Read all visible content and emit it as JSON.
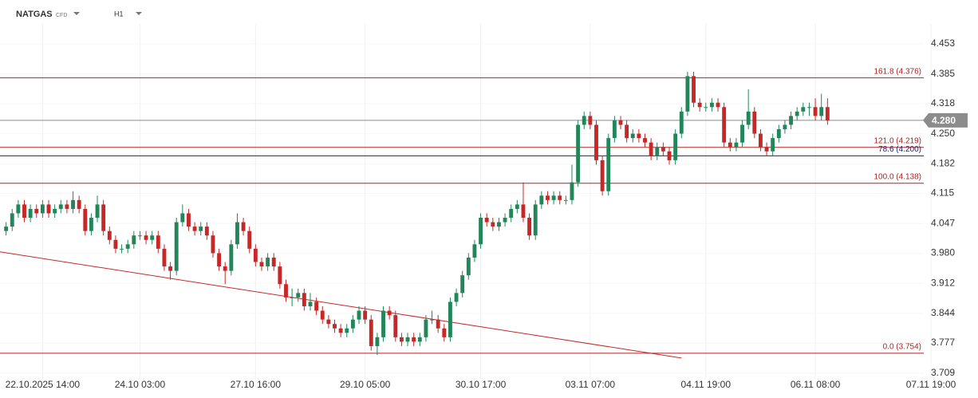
{
  "chart_data": {
    "type": "candlestick",
    "symbol": "NATGAS",
    "instrument": "CFD",
    "timeframe": "H1",
    "up_color": "#22865a",
    "down_color": "#c62828",
    "grid": true,
    "ylim": [
      3.696,
      4.552
    ],
    "yticks": [
      4.453,
      4.385,
      4.318,
      {
        "value": 4.25,
        "label": "4.250"
      },
      4.182,
      4.115,
      4.047,
      {
        "value": 3.98,
        "label": "3.980"
      },
      3.912,
      3.844,
      3.777,
      3.709
    ],
    "xlim": [
      -1,
      152
    ],
    "xticks": [
      {
        "value": 6,
        "label": "22.10.2025 14:00"
      },
      {
        "value": 22,
        "label": "24.10 03:00"
      },
      {
        "value": 41,
        "label": "27.10 16:00"
      },
      {
        "value": 59,
        "label": "29.10 05:00"
      },
      {
        "value": 78,
        "label": "30.10 17:00"
      },
      {
        "value": 96,
        "label": "03.11 07:00"
      },
      {
        "value": 115,
        "label": "04.11 19:00"
      },
      {
        "value": 133,
        "label": "06.11 08:00"
      },
      {
        "value": 152,
        "label": "07.11 19:00"
      }
    ],
    "last_price": {
      "value": 4.28,
      "label": "4.280",
      "color": "#8c8c8c"
    },
    "levels": [
      {
        "label": "161.8 (4.376)",
        "value": 4.376,
        "color": "#b22222"
      },
      {
        "label": "121.0 (4.219)",
        "value": 4.219,
        "color": "#b22222"
      },
      {
        "label": "78.6 (4.200)",
        "value": 4.2,
        "color": "#1a237e"
      },
      {
        "label": "100.0 (4.138)",
        "value": 4.138,
        "color": "#b22222"
      },
      {
        "label": "0.0 (3.754)",
        "value": 3.754,
        "color": "#b22222"
      }
    ],
    "trendline": {
      "x": [
        -1,
        111
      ],
      "y": [
        3.983,
        3.743
      ],
      "color": "#c62828"
    },
    "ohlc": [
      [
        4.03,
        4.05,
        4.02,
        4.04
      ],
      [
        4.04,
        4.08,
        4.03,
        4.07
      ],
      [
        4.07,
        4.1,
        4.06,
        4.09
      ],
      [
        4.09,
        4.1,
        4.05,
        4.06
      ],
      [
        4.06,
        4.09,
        4.05,
        4.08
      ],
      [
        4.08,
        4.09,
        4.06,
        4.07
      ],
      [
        4.07,
        4.1,
        4.06,
        4.09
      ],
      [
        4.09,
        4.1,
        4.06,
        4.07
      ],
      [
        4.07,
        4.09,
        4.06,
        4.08
      ],
      [
        4.08,
        4.1,
        4.07,
        4.09
      ],
      [
        4.09,
        4.1,
        4.07,
        4.08
      ],
      [
        4.08,
        4.12,
        4.07,
        4.1
      ],
      [
        4.1,
        4.11,
        4.07,
        4.08
      ],
      [
        4.08,
        4.09,
        4.02,
        4.03
      ],
      [
        4.03,
        4.07,
        4.02,
        4.06
      ],
      [
        4.06,
        4.11,
        4.05,
        4.09
      ],
      [
        4.09,
        4.1,
        4.02,
        4.03
      ],
      [
        4.03,
        4.04,
        4.0,
        4.01
      ],
      [
        4.01,
        4.02,
        3.98,
        3.99
      ],
      [
        3.99,
        4.0,
        3.98,
        3.99
      ],
      [
        3.99,
        4.01,
        3.98,
        4.0
      ],
      [
        4.0,
        4.03,
        3.99,
        4.02
      ],
      [
        4.02,
        4.03,
        4.01,
        4.02
      ],
      [
        4.02,
        4.03,
        4.0,
        4.01
      ],
      [
        4.01,
        4.03,
        4.0,
        4.02
      ],
      [
        4.02,
        4.03,
        3.98,
        3.99
      ],
      [
        3.99,
        4.0,
        3.94,
        3.95
      ],
      [
        3.95,
        3.96,
        3.92,
        3.94
      ],
      [
        3.94,
        4.06,
        3.93,
        4.05
      ],
      [
        4.05,
        4.09,
        4.04,
        4.07
      ],
      [
        4.07,
        4.08,
        4.03,
        4.04
      ],
      [
        4.04,
        4.05,
        4.02,
        4.03
      ],
      [
        4.03,
        4.05,
        4.02,
        4.04
      ],
      [
        4.04,
        4.05,
        4.01,
        4.02
      ],
      [
        4.02,
        4.03,
        3.97,
        3.98
      ],
      [
        3.98,
        3.99,
        3.94,
        3.95
      ],
      [
        3.95,
        3.96,
        3.91,
        3.94
      ],
      [
        3.94,
        4.01,
        3.93,
        4.0
      ],
      [
        4.0,
        4.07,
        3.99,
        4.05
      ],
      [
        4.05,
        4.06,
        4.02,
        4.03
      ],
      [
        4.03,
        4.04,
        3.98,
        3.99
      ],
      [
        3.99,
        4.0,
        3.95,
        3.96
      ],
      [
        3.96,
        3.97,
        3.94,
        3.95
      ],
      [
        3.95,
        3.98,
        3.94,
        3.97
      ],
      [
        3.97,
        3.98,
        3.94,
        3.95
      ],
      [
        3.95,
        3.96,
        3.9,
        3.91
      ],
      [
        3.91,
        3.92,
        3.87,
        3.88
      ],
      [
        3.88,
        3.9,
        3.86,
        3.88
      ],
      [
        3.88,
        3.9,
        3.87,
        3.89
      ],
      [
        3.89,
        3.9,
        3.85,
        3.86
      ],
      [
        3.86,
        3.89,
        3.85,
        3.87
      ],
      [
        3.87,
        3.88,
        3.84,
        3.85
      ],
      [
        3.85,
        3.86,
        3.82,
        3.83
      ],
      [
        3.83,
        3.84,
        3.81,
        3.82
      ],
      [
        3.82,
        3.83,
        3.8,
        3.81
      ],
      [
        3.81,
        3.82,
        3.79,
        3.8
      ],
      [
        3.8,
        3.82,
        3.79,
        3.81
      ],
      [
        3.81,
        3.84,
        3.8,
        3.83
      ],
      [
        3.83,
        3.86,
        3.82,
        3.85
      ],
      [
        3.85,
        3.86,
        3.82,
        3.83
      ],
      [
        3.83,
        3.84,
        3.76,
        3.77
      ],
      [
        3.77,
        3.8,
        3.75,
        3.79
      ],
      [
        3.79,
        3.86,
        3.78,
        3.85
      ],
      [
        3.85,
        3.86,
        3.83,
        3.84
      ],
      [
        3.84,
        3.85,
        3.78,
        3.79
      ],
      [
        3.79,
        3.8,
        3.77,
        3.78
      ],
      [
        3.78,
        3.8,
        3.77,
        3.79
      ],
      [
        3.79,
        3.8,
        3.77,
        3.78
      ],
      [
        3.78,
        3.8,
        3.77,
        3.79
      ],
      [
        3.79,
        3.84,
        3.78,
        3.83
      ],
      [
        3.83,
        3.85,
        3.82,
        3.83
      ],
      [
        3.83,
        3.84,
        3.8,
        3.81
      ],
      [
        3.81,
        3.82,
        3.78,
        3.79
      ],
      [
        3.79,
        3.88,
        3.78,
        3.87
      ],
      [
        3.87,
        3.9,
        3.86,
        3.89
      ],
      [
        3.89,
        3.94,
        3.88,
        3.93
      ],
      [
        3.93,
        3.98,
        3.92,
        3.97
      ],
      [
        3.97,
        4.01,
        3.96,
        4.0
      ],
      [
        4.0,
        4.07,
        3.99,
        4.06
      ],
      [
        4.06,
        4.07,
        4.04,
        4.05
      ],
      [
        4.05,
        4.06,
        4.03,
        4.04
      ],
      [
        4.04,
        4.06,
        4.03,
        4.05
      ],
      [
        4.05,
        4.07,
        4.04,
        4.06
      ],
      [
        4.06,
        4.09,
        4.05,
        4.08
      ],
      [
        4.08,
        4.1,
        4.07,
        4.09
      ],
      [
        4.09,
        4.14,
        4.05,
        4.06
      ],
      [
        4.06,
        4.07,
        4.01,
        4.02
      ],
      [
        4.02,
        4.1,
        4.01,
        4.09
      ],
      [
        4.09,
        4.12,
        4.08,
        4.11
      ],
      [
        4.11,
        4.12,
        4.09,
        4.1
      ],
      [
        4.1,
        4.12,
        4.09,
        4.11
      ],
      [
        4.11,
        4.12,
        4.09,
        4.1
      ],
      [
        4.1,
        4.11,
        4.09,
        4.1
      ],
      [
        4.1,
        4.18,
        4.09,
        4.14
      ],
      [
        4.14,
        4.28,
        4.13,
        4.27
      ],
      [
        4.27,
        4.3,
        4.26,
        4.29
      ],
      [
        4.29,
        4.3,
        4.26,
        4.27
      ],
      [
        4.27,
        4.28,
        4.18,
        4.19
      ],
      [
        4.19,
        4.2,
        4.11,
        4.12
      ],
      [
        4.12,
        4.25,
        4.11,
        4.24
      ],
      [
        4.24,
        4.29,
        4.23,
        4.28
      ],
      [
        4.28,
        4.29,
        4.26,
        4.27
      ],
      [
        4.27,
        4.28,
        4.23,
        4.24
      ],
      [
        4.24,
        4.26,
        4.23,
        4.25
      ],
      [
        4.25,
        4.26,
        4.23,
        4.24
      ],
      [
        4.24,
        4.25,
        4.22,
        4.23
      ],
      [
        4.23,
        4.24,
        4.19,
        4.2
      ],
      [
        4.2,
        4.23,
        4.19,
        4.22
      ],
      [
        4.22,
        4.23,
        4.2,
        4.21
      ],
      [
        4.21,
        4.22,
        4.18,
        4.19
      ],
      [
        4.19,
        4.26,
        4.18,
        4.25
      ],
      [
        4.25,
        4.31,
        4.24,
        4.3
      ],
      [
        4.3,
        4.39,
        4.29,
        4.38
      ],
      [
        4.38,
        4.39,
        4.31,
        4.32
      ],
      [
        4.32,
        4.33,
        4.3,
        4.31
      ],
      [
        4.31,
        4.32,
        4.3,
        4.31
      ],
      [
        4.31,
        4.33,
        4.3,
        4.32
      ],
      [
        4.32,
        4.33,
        4.3,
        4.31
      ],
      [
        4.31,
        4.32,
        4.22,
        4.23
      ],
      [
        4.23,
        4.24,
        4.21,
        4.22
      ],
      [
        4.22,
        4.24,
        4.21,
        4.23
      ],
      [
        4.23,
        4.28,
        4.22,
        4.27
      ],
      [
        4.27,
        4.35,
        4.26,
        4.3
      ],
      [
        4.3,
        4.31,
        4.24,
        4.25
      ],
      [
        4.25,
        4.26,
        4.21,
        4.22
      ],
      [
        4.22,
        4.23,
        4.2,
        4.21
      ],
      [
        4.21,
        4.25,
        4.2,
        4.24
      ],
      [
        4.24,
        4.27,
        4.23,
        4.26
      ],
      [
        4.26,
        4.28,
        4.25,
        4.27
      ],
      [
        4.27,
        4.3,
        4.26,
        4.29
      ],
      [
        4.29,
        4.31,
        4.28,
        4.3
      ],
      [
        4.3,
        4.32,
        4.29,
        4.31
      ],
      [
        4.31,
        4.32,
        4.29,
        4.31
      ],
      [
        4.31,
        4.33,
        4.28,
        4.29
      ],
      [
        4.29,
        4.34,
        4.28,
        4.31
      ],
      [
        4.31,
        4.33,
        4.27,
        4.28
      ]
    ]
  }
}
